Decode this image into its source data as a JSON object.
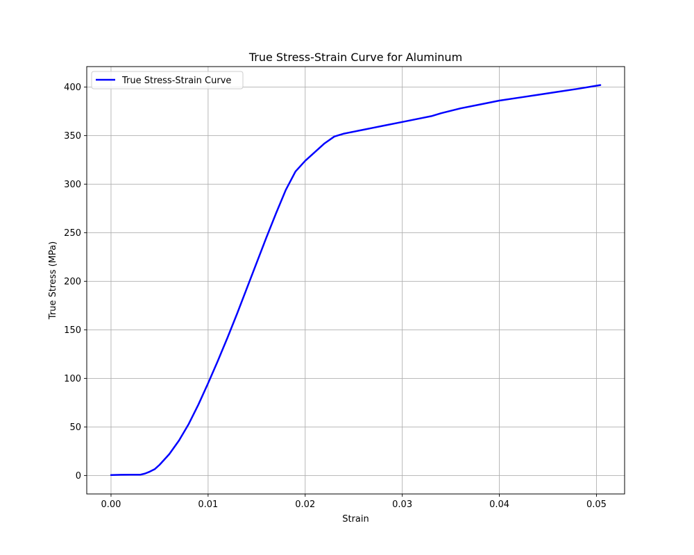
{
  "chart_data": {
    "type": "line",
    "title": "True Stress-Strain Curve for Aluminum",
    "xlabel": "Strain",
    "ylabel": "True Stress (MPa)",
    "xlim": [
      -0.0025,
      0.0529
    ],
    "ylim": [
      -19,
      421
    ],
    "xticks": [
      0.0,
      0.01,
      0.02,
      0.03,
      0.04,
      0.05
    ],
    "xtick_labels": [
      "0.00",
      "0.01",
      "0.02",
      "0.03",
      "0.04",
      "0.05"
    ],
    "yticks": [
      0,
      50,
      100,
      150,
      200,
      250,
      300,
      350,
      400
    ],
    "ytick_labels": [
      "0",
      "50",
      "100",
      "150",
      "200",
      "250",
      "300",
      "350",
      "400"
    ],
    "grid": true,
    "legend_position": "top-left",
    "series": [
      {
        "name": "True Stress-Strain Curve",
        "color": "#0000ff",
        "x": [
          0.0,
          0.001,
          0.002,
          0.003,
          0.0035,
          0.004,
          0.0045,
          0.005,
          0.006,
          0.007,
          0.008,
          0.009,
          0.01,
          0.011,
          0.012,
          0.013,
          0.014,
          0.015,
          0.016,
          0.017,
          0.018,
          0.019,
          0.02,
          0.021,
          0.022,
          0.023,
          0.024,
          0.0245,
          0.025,
          0.0255,
          0.026,
          0.027,
          0.028,
          0.03,
          0.032,
          0.033,
          0.034,
          0.036,
          0.038,
          0.04,
          0.042,
          0.044,
          0.046,
          0.048,
          0.0504
        ],
        "y": [
          0.5,
          0.7,
          0.8,
          0.8,
          2.0,
          4.0,
          6.5,
          11,
          22,
          36,
          53,
          73,
          95,
          118,
          142,
          167,
          193,
          219,
          245,
          270,
          294,
          313,
          324,
          333,
          342,
          349,
          352,
          353,
          354,
          355,
          356,
          358,
          360,
          364,
          368,
          370,
          373,
          378,
          382,
          386,
          389,
          392,
          395,
          398,
          402
        ]
      }
    ]
  }
}
